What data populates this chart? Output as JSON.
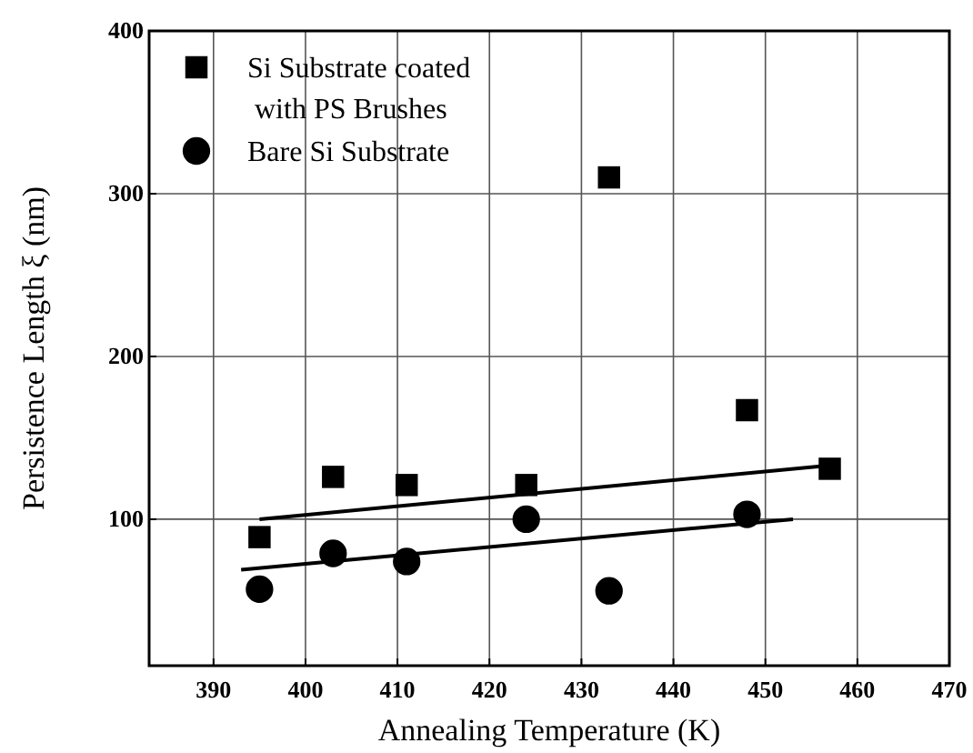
{
  "chart_data": {
    "type": "scatter",
    "xlabel": "Annealing Temperature (K)",
    "ylabel": "Persistence Length ξ (nm)",
    "xlim": [
      383,
      470
    ],
    "xticks": [
      390,
      400,
      410,
      420,
      430,
      440,
      450,
      460,
      470
    ],
    "ylim": [
      10,
      400
    ],
    "yticks": [
      100,
      200,
      300,
      400
    ],
    "grid": true,
    "legend": "top left",
    "series": [
      {
        "name": "Si Substrate coated with PS Brushes",
        "color": "#000000",
        "marker": "square",
        "x": [
          395,
          403,
          411,
          424,
          433,
          448,
          457
        ],
        "values": [
          89,
          126,
          121,
          121,
          310,
          167,
          131
        ]
      },
      {
        "name": "Bare Si Substrate",
        "color": "#000000",
        "marker": "circle",
        "x": [
          395,
          403,
          411,
          424,
          433,
          448
        ],
        "values": [
          57,
          79,
          74,
          100,
          56,
          103
        ]
      },
      {
        "type": "line",
        "color": "#000000",
        "marker": "none",
        "line_style": "solid",
        "x": [
          395,
          457
        ],
        "values": [
          100,
          133
        ]
      },
      {
        "type": "line",
        "color": "#000000",
        "marker": "none",
        "line_style": "solid",
        "x": [
          393,
          453
        ],
        "values": [
          69,
          100
        ]
      }
    ]
  }
}
